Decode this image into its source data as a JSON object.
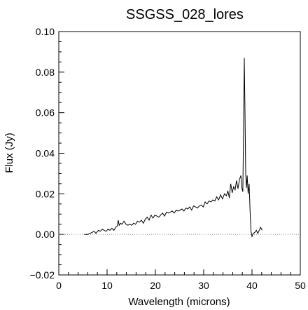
{
  "chart_data": {
    "type": "line",
    "title": "SSGSS_028_lores",
    "xlabel": "Wavelength (microns)",
    "ylabel": "Flux (Jy)",
    "xlim": [
      0,
      50
    ],
    "ylim": [
      -0.02,
      0.1
    ],
    "xticks": [
      0,
      10,
      20,
      30,
      40,
      50
    ],
    "xtick_labels": [
      "0",
      "10",
      "20",
      "30",
      "40",
      "50"
    ],
    "yticks": [
      -0.02,
      0.0,
      0.02,
      0.04,
      0.06,
      0.08,
      0.1
    ],
    "ytick_labels": [
      "−0.02",
      "0.00",
      "0.02",
      "0.04",
      "0.06",
      "0.08",
      "0.10"
    ],
    "grid": false,
    "reference_line": {
      "y": 0.0,
      "style": "dotted"
    },
    "series": [
      {
        "x": [
          5.3,
          6.0,
          6.5,
          6.9,
          7.3,
          7.7,
          8.2,
          8.6,
          9.0,
          9.4,
          9.8,
          10.2,
          10.6,
          11.0,
          11.4,
          11.8,
          12.1,
          12.3,
          12.5,
          12.8,
          13.1,
          13.5,
          13.9,
          14.3,
          14.7,
          15.1,
          15.5,
          15.9,
          16.3,
          16.7,
          17.1,
          17.5,
          17.9,
          18.3,
          18.7,
          19.1,
          19.5,
          19.9,
          20.3,
          20.7,
          21.1,
          21.5,
          21.9,
          22.3,
          22.7,
          23.1,
          23.5,
          23.9,
          24.3,
          24.7,
          25.1,
          25.5,
          25.9,
          26.3,
          26.7,
          27.1,
          27.5,
          27.9,
          28.3,
          28.7,
          29.1,
          29.5,
          29.9,
          30.3,
          30.7,
          31.1,
          31.5,
          31.9,
          32.3,
          32.7,
          33.1,
          33.5,
          33.9,
          34.3,
          34.7,
          35.0,
          35.3,
          35.6,
          35.9,
          36.2,
          36.5,
          36.8,
          37.1,
          37.4,
          37.7,
          37.9,
          38.1,
          38.25,
          38.4,
          38.55,
          38.7,
          38.85,
          39.0,
          39.2,
          39.4,
          39.6,
          39.8,
          40.0,
          40.3,
          40.6,
          40.9,
          41.2,
          41.5,
          41.8,
          42.1
        ],
        "y": [
          0.0,
          0.0,
          0.0005,
          0.001,
          0.0015,
          0.0005,
          0.002,
          0.0015,
          0.0025,
          0.002,
          0.0015,
          0.0025,
          0.002,
          0.003,
          0.002,
          0.0035,
          0.004,
          0.007,
          0.0045,
          0.0055,
          0.005,
          0.0065,
          0.005,
          0.0045,
          0.005,
          0.0045,
          0.0055,
          0.005,
          0.0065,
          0.006,
          0.007,
          0.0055,
          0.0075,
          0.0085,
          0.007,
          0.0095,
          0.008,
          0.0095,
          0.009,
          0.0085,
          0.0095,
          0.0105,
          0.009,
          0.011,
          0.0105,
          0.011,
          0.0115,
          0.0105,
          0.012,
          0.0115,
          0.012,
          0.0125,
          0.0115,
          0.013,
          0.0125,
          0.0135,
          0.012,
          0.014,
          0.0135,
          0.013,
          0.014,
          0.0145,
          0.0135,
          0.016,
          0.015,
          0.0165,
          0.016,
          0.017,
          0.0165,
          0.0185,
          0.017,
          0.0195,
          0.0175,
          0.02,
          0.019,
          0.0215,
          0.018,
          0.025,
          0.0205,
          0.0235,
          0.022,
          0.0265,
          0.0225,
          0.027,
          0.029,
          0.023,
          0.021,
          0.05,
          0.087,
          0.06,
          0.03,
          0.023,
          0.029,
          0.02,
          0.025,
          0.012,
          0.0015,
          -0.001,
          0.0005,
          0.001,
          0.002,
          0.0005,
          0.002,
          0.0035,
          0.002
        ]
      }
    ]
  }
}
